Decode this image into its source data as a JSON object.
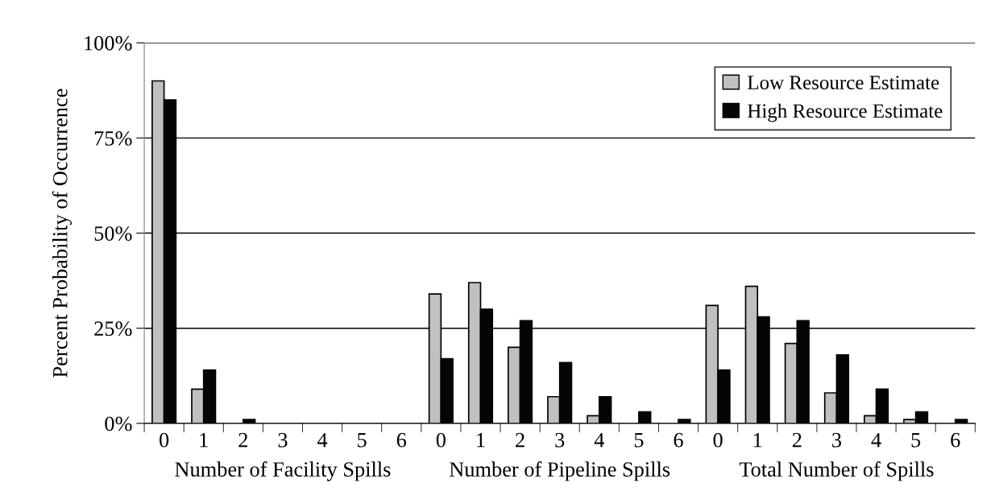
{
  "chart_data": {
    "type": "bar",
    "ylabel": "Percent Probability of Occurrence",
    "categories": [
      "0",
      "1",
      "2",
      "3",
      "4",
      "5",
      "6",
      "0",
      "1",
      "2",
      "3",
      "4",
      "5",
      "6",
      "0",
      "1",
      "2",
      "3",
      "4",
      "5",
      "6"
    ],
    "series": [
      {
        "name": "Low Resource Estimate",
        "color": "#c0c0c0",
        "values": [
          90,
          9,
          0,
          0,
          0,
          0,
          0,
          34,
          37,
          20,
          7,
          2,
          0,
          0,
          31,
          36,
          21,
          8,
          2,
          1,
          0
        ]
      },
      {
        "name": "High Resource Estimate",
        "color": "#050505",
        "values": [
          85,
          14,
          1,
          0,
          0,
          0,
          0,
          17,
          30,
          27,
          16,
          7,
          3,
          1,
          14,
          28,
          27,
          18,
          9,
          3,
          1
        ]
      }
    ],
    "ylim": [
      0,
      100
    ],
    "yticks": [
      {
        "value": 0,
        "label": "0%"
      },
      {
        "value": 25,
        "label": "25%"
      },
      {
        "value": 50,
        "label": "50%"
      },
      {
        "value": 75,
        "label": "75%"
      },
      {
        "value": 100,
        "label": "100%"
      }
    ],
    "grid": "y",
    "legend": "top right",
    "annotations": [
      "Number of Facility Spills",
      "Number of Pipeline Spills",
      "Total Number of Spills"
    ]
  }
}
